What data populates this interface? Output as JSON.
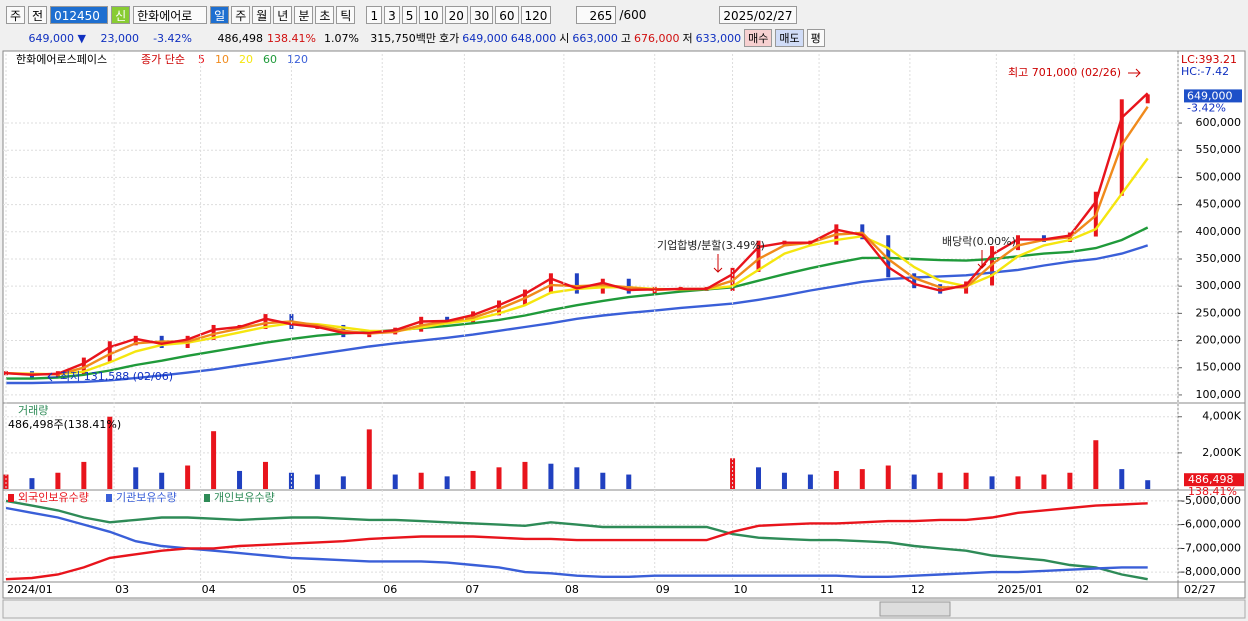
{
  "toolbar": {
    "fields": [
      "주",
      "전",
      "012450",
      "한화에어로"
    ],
    "badge": "신",
    "periods": [
      "일",
      "주",
      "월",
      "년",
      "분",
      "초",
      "틱"
    ],
    "intervals": [
      "1",
      "3",
      "5",
      "10",
      "20",
      "30",
      "60",
      "120"
    ],
    "count": "265",
    "max": "/600",
    "date": "2025/02/27"
  },
  "quote": {
    "price": "649,000 ▼",
    "change": "23,000",
    "rate": "-3.42%",
    "volume": "486,498",
    "volume_rate": "138.41%",
    "turnover": "1.07%",
    "amount": "315,750백만",
    "ask_label": "호가",
    "ask": "649,000",
    "bid": "648,000",
    "open_label": "시",
    "open": "663,000",
    "high_label": "고",
    "high": "676,000",
    "low_label": "저",
    "low": "633,000",
    "buy": "매수",
    "sell": "매도",
    "avg": "평"
  },
  "chart_data": [
    {
      "type": "line",
      "title": "한화에어로스페이스",
      "legend_prefix": "종가 단순",
      "lc": "LC:393.21",
      "hc": "HC:-7.42",
      "x": [
        0,
        6,
        12,
        18,
        24,
        30,
        36,
        42,
        48,
        54,
        60,
        66,
        72,
        78,
        84,
        90,
        96,
        102,
        108,
        114,
        120,
        126,
        132,
        138,
        144,
        150,
        156,
        162,
        168,
        174,
        180,
        186,
        192,
        198,
        204,
        210,
        216,
        222,
        228,
        234,
        240,
        246,
        252,
        258,
        264
      ],
      "price": [
        140000,
        135000,
        140000,
        165000,
        195000,
        205000,
        190000,
        205000,
        225000,
        225000,
        245000,
        225000,
        225000,
        210000,
        215000,
        220000,
        240000,
        235000,
        250000,
        270000,
        290000,
        320000,
        290000,
        310000,
        290000,
        295000,
        295000,
        295000,
        330000,
        380000,
        380000,
        380000,
        410000,
        390000,
        320000,
        300000,
        290000,
        305000,
        370000,
        390000,
        385000,
        395000,
        470000,
        640000,
        649000
      ],
      "series": [
        {
          "name": "5",
          "color": "#e8141c",
          "values": [
            140000,
            137000,
            139000,
            158000,
            188000,
            203000,
            194000,
            202000,
            220000,
            225000,
            240000,
            230000,
            225000,
            214000,
            214000,
            219000,
            235000,
            236000,
            247000,
            265000,
            286000,
            314000,
            296000,
            306000,
            293000,
            294000,
            295000,
            295000,
            322000,
            372000,
            380000,
            380000,
            404000,
            394000,
            335000,
            304000,
            292000,
            302000,
            358000,
            386000,
            386000,
            393000,
            455000,
            610000,
            655000
          ]
        },
        {
          "name": "10",
          "color": "#f08a1c",
          "values": [
            140000,
            138000,
            138000,
            150000,
            175000,
            195000,
            198000,
            198000,
            212000,
            222000,
            232000,
            235000,
            228000,
            218000,
            213000,
            216000,
            228000,
            235000,
            242000,
            258000,
            278000,
            302000,
            300000,
            302000,
            298000,
            293000,
            295000,
            295000,
            310000,
            350000,
            375000,
            380000,
            395000,
            398000,
            350000,
            315000,
            298000,
            298000,
            340000,
            375000,
            385000,
            390000,
            430000,
            560000,
            630000
          ]
        },
        {
          "name": "20",
          "color": "#f5e60f",
          "values": [
            140000,
            139000,
            138000,
            143000,
            160000,
            180000,
            192000,
            196000,
            205000,
            215000,
            225000,
            232000,
            230000,
            224000,
            218000,
            217000,
            224000,
            232000,
            238000,
            250000,
            265000,
            288000,
            295000,
            298000,
            298000,
            295000,
            294000,
            295000,
            300000,
            330000,
            360000,
            375000,
            385000,
            392000,
            370000,
            335000,
            310000,
            300000,
            320000,
            355000,
            375000,
            385000,
            405000,
            470000,
            535000
          ]
        },
        {
          "name": "60",
          "color": "#1f9a3a",
          "values": [
            130000,
            130000,
            132000,
            137000,
            145000,
            155000,
            163000,
            172000,
            180000,
            188000,
            196000,
            203000,
            209000,
            213000,
            216000,
            219000,
            223000,
            227000,
            232000,
            238000,
            246000,
            256000,
            265000,
            273000,
            280000,
            285000,
            290000,
            294000,
            298000,
            310000,
            322000,
            333000,
            343000,
            352000,
            352000,
            350000,
            348000,
            347000,
            350000,
            355000,
            360000,
            363000,
            370000,
            385000,
            408000
          ]
        },
        {
          "name": "120",
          "color": "#3a5fd8",
          "values": [
            122000,
            122000,
            123000,
            124000,
            127000,
            131000,
            136000,
            141000,
            147000,
            154000,
            161000,
            168000,
            175000,
            182000,
            189000,
            195000,
            200000,
            205000,
            211000,
            218000,
            225000,
            232000,
            240000,
            246000,
            251000,
            255000,
            260000,
            264000,
            268000,
            275000,
            283000,
            292000,
            300000,
            308000,
            313000,
            316000,
            318000,
            320000,
            325000,
            330000,
            338000,
            345000,
            350000,
            360000,
            375000
          ]
        }
      ],
      "ylim": [
        87000,
        727000
      ],
      "xlim": [
        0,
        271
      ],
      "yticks": [
        {
          "value": 100000,
          "label": "100,000"
        },
        {
          "value": 150000,
          "label": "150,000"
        },
        {
          "value": 200000,
          "label": "200,000"
        },
        {
          "value": 250000,
          "label": "250,000"
        },
        {
          "value": 300000,
          "label": "300,000"
        },
        {
          "value": 350000,
          "label": "350,000"
        },
        {
          "value": 400000,
          "label": "400,000"
        },
        {
          "value": 450000,
          "label": "450,000"
        },
        {
          "value": 500000,
          "label": "500,000"
        },
        {
          "value": 550000,
          "label": "550,000"
        },
        {
          "value": 600000,
          "label": "600,000"
        }
      ],
      "current": {
        "value": 649000,
        "label": "649,000",
        "rate": "-3.42%"
      },
      "annotations": [
        "최고 701,000 (02/26)",
        "최저 131,588 (02/06)",
        "기업합병/분할(3.49%)",
        "배당락(0.00%)"
      ]
    },
    {
      "type": "bar",
      "title": "거래량",
      "subtitle": "486,498주(138.41%)",
      "up": "#e8141c",
      "down": "#2040c0",
      "x": [
        0,
        6,
        12,
        18,
        24,
        30,
        36,
        42,
        48,
        54,
        60,
        66,
        72,
        78,
        84,
        90,
        96,
        102,
        108,
        114,
        120,
        126,
        132,
        138,
        144,
        150,
        156,
        162,
        168,
        174,
        180,
        186,
        192,
        198,
        204,
        210,
        216,
        222,
        228,
        234,
        240,
        246,
        252,
        258,
        264
      ],
      "values": [
        800000,
        600000,
        900000,
        1500000,
        4000000,
        1200000,
        900000,
        1300000,
        3200000,
        1000000,
        1500000,
        900000,
        800000,
        700000,
        3300000,
        800000,
        900000,
        700000,
        1000000,
        1200000,
        1500000,
        1400000,
        1200000,
        900000,
        800000,
        null,
        null,
        null,
        1700000,
        1200000,
        900000,
        800000,
        1000000,
        1100000,
        1300000,
        800000,
        900000,
        900000,
        700000,
        700000,
        800000,
        900000,
        2700000,
        1100000,
        486498
      ],
      "ylim": [
        0,
        4650000
      ],
      "xlim": [
        0,
        271
      ],
      "yticks": [
        {
          "value": 2000000,
          "label": "2,000K"
        },
        {
          "value": 4000000,
          "label": "4,000K"
        }
      ],
      "current": {
        "value": 486498,
        "label": "486,498",
        "rate": "138.41%"
      }
    },
    {
      "type": "line",
      "x": [
        0,
        6,
        12,
        18,
        24,
        30,
        36,
        42,
        48,
        54,
        60,
        66,
        72,
        78,
        84,
        90,
        96,
        102,
        108,
        114,
        120,
        126,
        132,
        138,
        144,
        150,
        156,
        162,
        168,
        174,
        180,
        186,
        192,
        198,
        204,
        210,
        216,
        222,
        228,
        234,
        240,
        246,
        252,
        258,
        264
      ],
      "series": [
        {
          "name": "외국인보유수량",
          "color": "#e8141c",
          "values": [
            -8300000,
            -8250000,
            -8100000,
            -7800000,
            -7400000,
            -7250000,
            -7100000,
            -7000000,
            -7000000,
            -6900000,
            -6850000,
            -6800000,
            -6750000,
            -6700000,
            -6600000,
            -6550000,
            -6500000,
            -6500000,
            -6500000,
            -6550000,
            -6600000,
            -6600000,
            -6650000,
            -6650000,
            -6650000,
            -6650000,
            -6650000,
            -6650000,
            -6300000,
            -6050000,
            -6000000,
            -5950000,
            -5950000,
            -5900000,
            -5850000,
            -5850000,
            -5800000,
            -5800000,
            -5700000,
            -5500000,
            -5400000,
            -5300000,
            -5200000,
            -5150000,
            -5100000
          ]
        },
        {
          "name": "기관보유수량",
          "color": "#3a5fd8",
          "values": [
            -5300000,
            -5500000,
            -5700000,
            -6000000,
            -6300000,
            -6700000,
            -6900000,
            -7000000,
            -7100000,
            -7200000,
            -7300000,
            -7400000,
            -7450000,
            -7500000,
            -7550000,
            -7550000,
            -7550000,
            -7600000,
            -7700000,
            -7800000,
            -8000000,
            -8050000,
            -8150000,
            -8200000,
            -8200000,
            -8150000,
            -8150000,
            -8150000,
            -8150000,
            -8150000,
            -8150000,
            -8150000,
            -8150000,
            -8200000,
            -8200000,
            -8150000,
            -8100000,
            -8050000,
            -8000000,
            -8000000,
            -7950000,
            -7900000,
            -7850000,
            -7800000,
            -7800000
          ]
        },
        {
          "name": "개인보유수량",
          "color": "#2e8b57",
          "values": [
            -5000000,
            -5200000,
            -5400000,
            -5700000,
            -5900000,
            -5800000,
            -5700000,
            -5700000,
            -5750000,
            -5800000,
            -5750000,
            -5700000,
            -5700000,
            -5750000,
            -5800000,
            -5800000,
            -5850000,
            -5900000,
            -5950000,
            -6000000,
            -6050000,
            -5900000,
            -6000000,
            -6100000,
            -6100000,
            -6100000,
            -6100000,
            -6100000,
            -6400000,
            -6550000,
            -6600000,
            -6650000,
            -6650000,
            -6700000,
            -6750000,
            -6900000,
            -7000000,
            -7100000,
            -7300000,
            -7400000,
            -7500000,
            -7700000,
            -7800000,
            -8100000,
            -8300000
          ]
        }
      ],
      "ylim": [
        -8333000,
        -4625000
      ],
      "xlim": [
        0,
        271
      ],
      "yticks": [
        {
          "value": -5000000,
          "label": "-5,000,000"
        },
        {
          "value": -6000000,
          "label": "-6,000,000"
        },
        {
          "value": -7000000,
          "label": "-7,000,000"
        },
        {
          "value": -8000000,
          "label": "-8,000,000"
        }
      ],
      "xticks": [
        {
          "value": 0,
          "label": "2024/01"
        },
        {
          "value": 25,
          "label": "03"
        },
        {
          "value": 45,
          "label": "04"
        },
        {
          "value": 66,
          "label": "05"
        },
        {
          "value": 87,
          "label": "06"
        },
        {
          "value": 106,
          "label": "07"
        },
        {
          "value": 129,
          "label": "08"
        },
        {
          "value": 150,
          "label": "09"
        },
        {
          "value": 168,
          "label": "10"
        },
        {
          "value": 188,
          "label": "11"
        },
        {
          "value": 209,
          "label": "12"
        },
        {
          "value": 229,
          "label": "2025/01"
        },
        {
          "value": 247,
          "label": "02"
        },
        {
          "value": 271,
          "label": "02/27"
        }
      ]
    }
  ]
}
